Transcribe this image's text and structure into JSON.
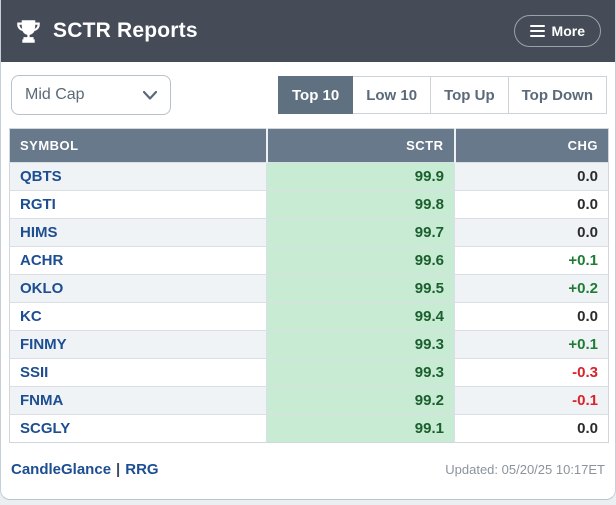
{
  "header": {
    "title": "SCTR Reports",
    "more_label": "More"
  },
  "controls": {
    "group_select": {
      "value": "Mid Cap"
    },
    "tabs": [
      {
        "label": "Top 10",
        "active": true
      },
      {
        "label": "Low 10",
        "active": false
      },
      {
        "label": "Top Up",
        "active": false
      },
      {
        "label": "Top Down",
        "active": false
      }
    ]
  },
  "table": {
    "columns": [
      "SYMBOL",
      "SCTR",
      "CHG"
    ],
    "rows": [
      {
        "symbol": "QBTS",
        "sctr": "99.9",
        "chg": "0.0",
        "chg_dir": "flat"
      },
      {
        "symbol": "RGTI",
        "sctr": "99.8",
        "chg": "0.0",
        "chg_dir": "flat"
      },
      {
        "symbol": "HIMS",
        "sctr": "99.7",
        "chg": "0.0",
        "chg_dir": "flat"
      },
      {
        "symbol": "ACHR",
        "sctr": "99.6",
        "chg": "+0.1",
        "chg_dir": "up"
      },
      {
        "symbol": "OKLO",
        "sctr": "99.5",
        "chg": "+0.2",
        "chg_dir": "up"
      },
      {
        "symbol": "KC",
        "sctr": "99.4",
        "chg": "0.0",
        "chg_dir": "flat"
      },
      {
        "symbol": "FINMY",
        "sctr": "99.3",
        "chg": "+0.1",
        "chg_dir": "up"
      },
      {
        "symbol": "SSII",
        "sctr": "99.3",
        "chg": "-0.3",
        "chg_dir": "down"
      },
      {
        "symbol": "FNMA",
        "sctr": "99.2",
        "chg": "-0.1",
        "chg_dir": "down"
      },
      {
        "symbol": "SCGLY",
        "sctr": "99.1",
        "chg": "0.0",
        "chg_dir": "flat"
      }
    ]
  },
  "footer": {
    "links": [
      "CandleGlance",
      "RRG"
    ],
    "separator": "|",
    "updated": "Updated: 05/20/25 10:17ET"
  },
  "colors": {
    "header_bg": "#454c57",
    "active_tab_bg": "#5f7080",
    "table_header_bg": "#68798b",
    "sctr_cell_bg": "#c8ecd3",
    "sctr_text": "#1b5e2f",
    "symbol_link": "#1c4e91",
    "chg_up": "#1e7c34",
    "chg_down": "#d9232a"
  }
}
